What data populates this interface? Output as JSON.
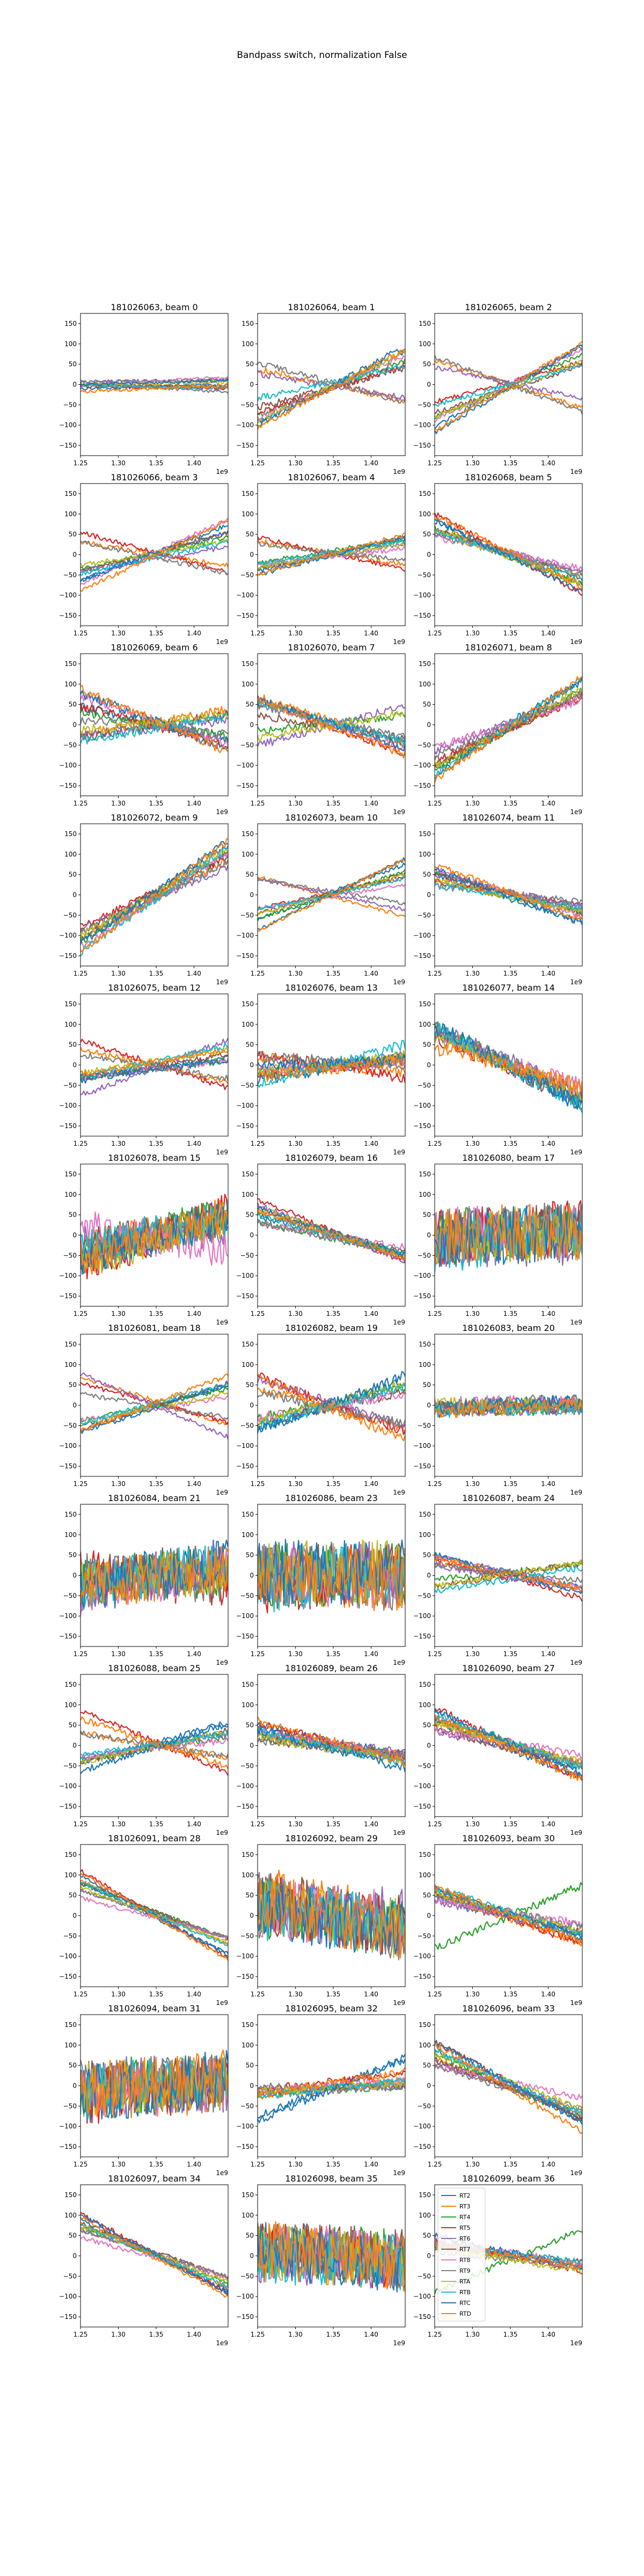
{
  "figure": {
    "suptitle": "Bandpass switch, normalization False"
  },
  "chart_data": {
    "type": "line",
    "layout": "12x3 grid of subplots (36 beams shown, beam 22 absent)",
    "x_axis": {
      "ticks": [
        1.25,
        1.3,
        1.35,
        1.4
      ],
      "tick_labels": [
        "1.25",
        "1.30",
        "1.35",
        "1.40"
      ],
      "offset_label": "1e9",
      "xlim": [
        1.25,
        1.445
      ]
    },
    "y_axis": {
      "ticks": [
        -150,
        -100,
        -50,
        0,
        50,
        100,
        150
      ],
      "tick_labels": [
        "−150",
        "−100",
        "−50",
        "0",
        "50",
        "100",
        "150"
      ],
      "ylim": [
        -175,
        175
      ]
    },
    "series_colors": {
      "RT2": "#1f77b4",
      "RT3": "#ff7f0e",
      "RT4": "#2ca02c",
      "RT5": "#d62728",
      "RT6": "#9467bd",
      "RT7": "#8c564b",
      "RT8": "#e377c2",
      "RT9": "#7f7f7f",
      "RTA": "#bcbd22",
      "RTB": "#17becf",
      "RTC": "#1f77b4",
      "RTD": "#ff7f0e"
    },
    "legend": {
      "location": "in last subplot, upper-left",
      "entries": [
        "RT2",
        "RT3",
        "RT4",
        "RT5",
        "RT6",
        "RT7",
        "RT8",
        "RT9",
        "RTA",
        "RTB",
        "RTC",
        "RTD"
      ]
    },
    "panels": [
      {
        "title": "181026063, beam 0",
        "slopes": [
          0.05,
          -0.05,
          0.03,
          -0.03,
          0.02,
          -0.02,
          0.1,
          -0.1,
          0.04,
          -0.04,
          0.06,
          0.08
        ],
        "noise": 4,
        "wraps": false
      },
      {
        "title": "181026064, beam 1",
        "slopes": [
          0.9,
          -0.4,
          0.7,
          0.6,
          -0.3,
          0.5,
          0.8,
          -0.5,
          0.9,
          0.4,
          1.0,
          1.0
        ],
        "noise": 8,
        "wraps": true
      },
      {
        "title": "181026065, beam 2",
        "slopes": [
          1.0,
          -0.6,
          0.8,
          0.5,
          -0.4,
          0.6,
          0.9,
          -0.7,
          0.7,
          0.5,
          1.1,
          1.1
        ],
        "noise": 6,
        "wraps": false
      },
      {
        "title": "181026066, beam 3",
        "slopes": [
          0.6,
          -0.3,
          0.4,
          -0.5,
          0.3,
          0.5,
          0.8,
          -0.4,
          0.3,
          0.4,
          0.7,
          0.9
        ],
        "noise": 6,
        "wraps": false
      },
      {
        "title": "181026067, beam 4",
        "slopes": [
          0.4,
          -0.3,
          0.3,
          -0.4,
          0.3,
          0.4,
          0.2,
          -0.2,
          0.3,
          0.3,
          0.5,
          0.5
        ],
        "noise": 6,
        "wraps": false
      },
      {
        "title": "181026068, beam 5",
        "slopes": [
          -0.8,
          -0.6,
          -0.7,
          -1.0,
          -0.5,
          -0.6,
          -0.4,
          -0.5,
          -0.7,
          -0.6,
          -0.9,
          -0.9
        ],
        "noise": 8,
        "wraps": false
      },
      {
        "title": "181026069, beam 6",
        "slopes": [
          -0.4,
          0.3,
          -0.3,
          -0.5,
          0.2,
          0.3,
          -0.6,
          -0.2,
          0.2,
          0.3,
          -0.7,
          -0.8
        ],
        "noise": 12,
        "wraps": false
      },
      {
        "title": "181026070, beam 7",
        "slopes": [
          -0.5,
          -0.6,
          0.2,
          -0.7,
          0.5,
          -0.3,
          -0.6,
          -0.4,
          0.3,
          -0.5,
          -0.6,
          -0.7
        ],
        "noise": 10,
        "wraps": true
      },
      {
        "title": "181026071, beam 8",
        "slopes": [
          1.1,
          0.9,
          1.0,
          0.8,
          0.7,
          0.9,
          0.6,
          0.8,
          1.0,
          1.2,
          1.2,
          1.3
        ],
        "noise": 10,
        "wraps": false
      },
      {
        "title": "181026072, beam 9",
        "slopes": [
          1.2,
          1.0,
          1.1,
          0.9,
          0.8,
          1.0,
          1.2,
          0.9,
          1.1,
          1.3,
          1.3,
          1.4
        ],
        "noise": 10,
        "wraps": true
      },
      {
        "title": "181026073, beam 10",
        "slopes": [
          0.7,
          -0.5,
          0.6,
          0.4,
          -0.4,
          0.5,
          0.3,
          -0.3,
          0.5,
          0.4,
          0.9,
          0.9
        ],
        "noise": 5,
        "wraps": false
      },
      {
        "title": "181026074, beam 11",
        "slopes": [
          -0.6,
          -0.4,
          -0.5,
          -0.3,
          -0.4,
          -0.5,
          -0.6,
          -0.2,
          -0.4,
          -0.3,
          -0.7,
          -0.7
        ],
        "noise": 8,
        "wraps": false
      },
      {
        "title": "181026075, beam 12",
        "slopes": [
          0.3,
          -0.4,
          0.2,
          -0.6,
          0.7,
          0.3,
          0.2,
          -0.3,
          0.3,
          0.4,
          0.2,
          0.3
        ],
        "noise": 8,
        "wraps": false
      },
      {
        "title": "181026076, beam 13",
        "slopes": [
          0.3,
          -0.2,
          0.2,
          -0.3,
          0.2,
          0.2,
          0.1,
          -0.1,
          0.2,
          0.5,
          0.1,
          0.2
        ],
        "noise": 14,
        "wraps": false
      },
      {
        "title": "181026077, beam 14",
        "slopes": [
          -1.0,
          -0.8,
          -0.9,
          -0.7,
          -0.8,
          -0.9,
          -0.6,
          -0.8,
          -0.7,
          -1.0,
          -1.0,
          -0.5
        ],
        "noise": 20,
        "wraps": false
      },
      {
        "title": "181026078, beam 15",
        "slopes": [
          0.6,
          0.3,
          0.5,
          0.7,
          0.2,
          0.4,
          -0.3,
          0.5,
          0.6,
          0.4,
          0.5,
          0.6
        ],
        "noise": 45,
        "wraps": false
      },
      {
        "title": "181026079, beam 16",
        "slopes": [
          -0.5,
          -0.6,
          -0.4,
          -0.8,
          -0.7,
          -0.5,
          -0.3,
          -0.4,
          -0.6,
          -0.5,
          -0.6,
          -0.6
        ],
        "noise": 8,
        "wraps": false
      },
      {
        "title": "181026080, beam 17",
        "slopes": [
          0.1,
          0.1,
          0.0,
          0.1,
          0.0,
          0.1,
          0.0,
          0.1,
          0.0,
          0.2,
          0.1,
          0.1
        ],
        "noise": 70,
        "wraps": false
      },
      {
        "title": "181026081, beam 18",
        "slopes": [
          0.5,
          -0.6,
          0.4,
          -0.5,
          -0.8,
          0.6,
          0.3,
          -0.3,
          0.4,
          0.5,
          0.6,
          0.7
        ],
        "noise": 6,
        "wraps": false
      },
      {
        "title": "181026082, beam 19",
        "slopes": [
          0.6,
          -0.5,
          0.4,
          -0.7,
          -0.6,
          0.4,
          0.3,
          -0.4,
          0.5,
          0.5,
          0.7,
          -0.8
        ],
        "noise": 12,
        "wraps": false
      },
      {
        "title": "181026083, beam 20",
        "slopes": [
          0.1,
          0.05,
          0.0,
          0.05,
          0.0,
          0.05,
          0.0,
          0.05,
          0.0,
          0.05,
          0.1,
          0.1
        ],
        "noise": 18,
        "wraps": false
      },
      {
        "title": "181026084, beam 21",
        "slopes": [
          0.3,
          0.2,
          0.1,
          -0.2,
          0.3,
          0.1,
          0.4,
          -0.1,
          0.2,
          0.3,
          0.3,
          0.2
        ],
        "noise": 60,
        "wraps": false
      },
      {
        "title": "181026086, beam 23",
        "slopes": [
          0.0,
          -0.1,
          0.0,
          0.1,
          0.0,
          0.1,
          0.0,
          -0.1,
          0.0,
          0.1,
          0.0,
          -0.1
        ],
        "noise": 80,
        "wraps": false
      },
      {
        "title": "181026087, beam 24",
        "slopes": [
          -0.4,
          -0.3,
          0.2,
          -0.5,
          -0.3,
          0.3,
          -0.4,
          -0.2,
          0.3,
          0.3,
          -0.5,
          -0.4
        ],
        "noise": 8,
        "wraps": false
      },
      {
        "title": "181026088, beam 25",
        "slopes": [
          0.5,
          -0.3,
          0.3,
          -0.8,
          0.3,
          0.4,
          0.2,
          -0.3,
          0.4,
          0.3,
          0.6,
          -0.6
        ],
        "noise": 8,
        "wraps": false
      },
      {
        "title": "181026089, beam 26",
        "slopes": [
          -0.4,
          -0.3,
          -0.2,
          -0.5,
          -0.3,
          -0.2,
          -0.3,
          -0.2,
          -0.3,
          -0.4,
          -0.5,
          -0.5
        ],
        "noise": 12,
        "wraps": false
      },
      {
        "title": "181026090, beam 27",
        "slopes": [
          -0.7,
          -0.5,
          -0.6,
          -0.9,
          -0.4,
          -0.5,
          -0.3,
          -0.6,
          -0.5,
          -0.7,
          -0.8,
          -0.8
        ],
        "noise": 10,
        "wraps": true
      },
      {
        "title": "181026091, beam 28",
        "slopes": [
          -0.9,
          -0.8,
          -0.7,
          -1.1,
          -0.6,
          -0.7,
          -0.5,
          -0.6,
          -0.7,
          -0.8,
          -1.0,
          -1.1
        ],
        "noise": 5,
        "wraps": false
      },
      {
        "title": "181026092, beam 29",
        "slopes": [
          -0.3,
          -0.4,
          -0.2,
          -0.3,
          -0.2,
          -0.3,
          -0.2,
          -0.4,
          -0.3,
          -0.2,
          -0.3,
          -0.4
        ],
        "noise": 75,
        "wraps": false
      },
      {
        "title": "181026093, beam 30",
        "slopes": [
          -0.5,
          -0.6,
          0.8,
          -0.7,
          -0.4,
          -0.5,
          -0.3,
          -0.4,
          -0.5,
          -0.6,
          -0.6,
          -0.7
        ],
        "noise": 10,
        "wraps": false
      },
      {
        "title": "181026094, beam 31",
        "slopes": [
          0.2,
          0.1,
          0.1,
          0.2,
          0.0,
          0.1,
          0.1,
          0.0,
          0.1,
          0.2,
          0.2,
          0.2
        ],
        "noise": 70,
        "wraps": false
      },
      {
        "title": "181026095, beam 32",
        "slopes": [
          0.7,
          0.2,
          0.1,
          0.2,
          0.1,
          0.1,
          0.1,
          0.0,
          0.1,
          0.2,
          0.8,
          0.3
        ],
        "noise": 10,
        "wraps": false
      },
      {
        "title": "181026096, beam 33",
        "slopes": [
          -0.9,
          -0.7,
          -0.8,
          -1.0,
          -0.6,
          -0.7,
          -0.4,
          -0.6,
          -0.7,
          -0.8,
          -1.0,
          -1.1
        ],
        "noise": 8,
        "wraps": false
      },
      {
        "title": "181026097, beam 34",
        "slopes": [
          -0.9,
          -0.8,
          -0.7,
          -1.0,
          -0.6,
          -0.7,
          -0.5,
          -0.6,
          -0.7,
          -0.8,
          -1.0,
          -1.0
        ],
        "noise": 6,
        "wraps": false
      },
      {
        "title": "181026098, beam 35",
        "slopes": [
          -0.2,
          -0.2,
          -0.1,
          -0.2,
          -0.1,
          -0.1,
          -0.1,
          -0.2,
          -0.1,
          -0.1,
          -0.2,
          -0.2
        ],
        "noise": 70,
        "wraps": false
      },
      {
        "title": "181026099, beam 36",
        "slopes": [
          -0.3,
          -0.2,
          0.8,
          -0.4,
          -0.3,
          -0.2,
          -0.3,
          -0.2,
          -0.3,
          -0.2,
          -0.4,
          -0.3
        ],
        "noise": 8,
        "wraps": false
      }
    ]
  }
}
